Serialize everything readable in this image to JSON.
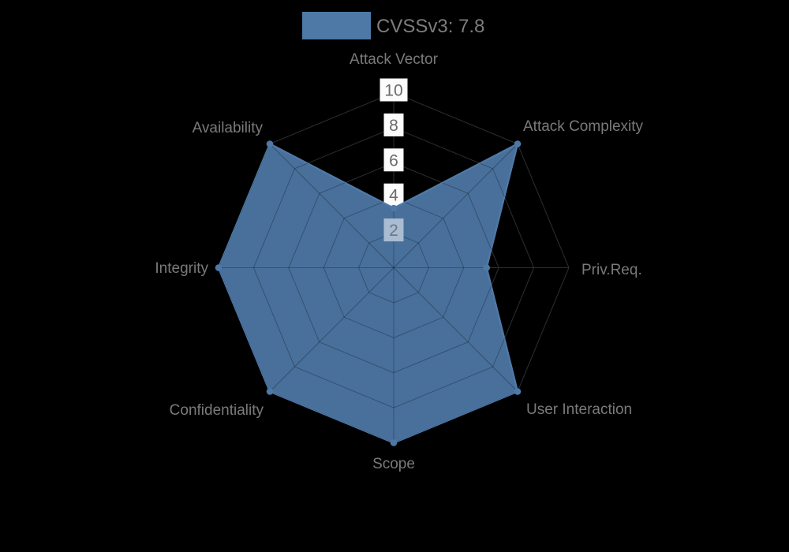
{
  "chart_data": {
    "type": "radar",
    "title": "",
    "legend": {
      "position": "top",
      "items": [
        {
          "label": "CVSSv3: 7.8",
          "swatch_color": "#4e79a7"
        }
      ]
    },
    "axes": [
      "Attack Vector",
      "Attack Complexity",
      "Priv.Req.",
      "User Interaction",
      "Scope",
      "Confidentiality",
      "Integrity",
      "Availability"
    ],
    "series": [
      {
        "name": "CVSSv3: 7.8",
        "values": [
          3.4,
          10,
          5.3,
          10,
          10,
          10,
          10,
          10
        ]
      }
    ],
    "scale": {
      "min": 0,
      "max": 10,
      "step": 2,
      "tick_labels": [
        "10",
        "8",
        "6",
        "4",
        "2"
      ],
      "grid": true,
      "grid_shape": "octagon-web"
    },
    "colors": {
      "background": "#000000",
      "polygon_fill": "#48709b",
      "polygon_stroke": "#4e79a7",
      "grid_outside": "#2e2e2e",
      "grid_inside": "rgba(0,0,0,0.28)",
      "tick_backdrop": "#fcfcfc",
      "tick_backdrop_inside_polygon": "#a9bcd1",
      "tick_text": "#6a6a6a",
      "tick_text_inside_polygon": "#6b7685",
      "axis_label_text": "#7a7a7a",
      "legend_text": "#7d7d7d"
    }
  }
}
